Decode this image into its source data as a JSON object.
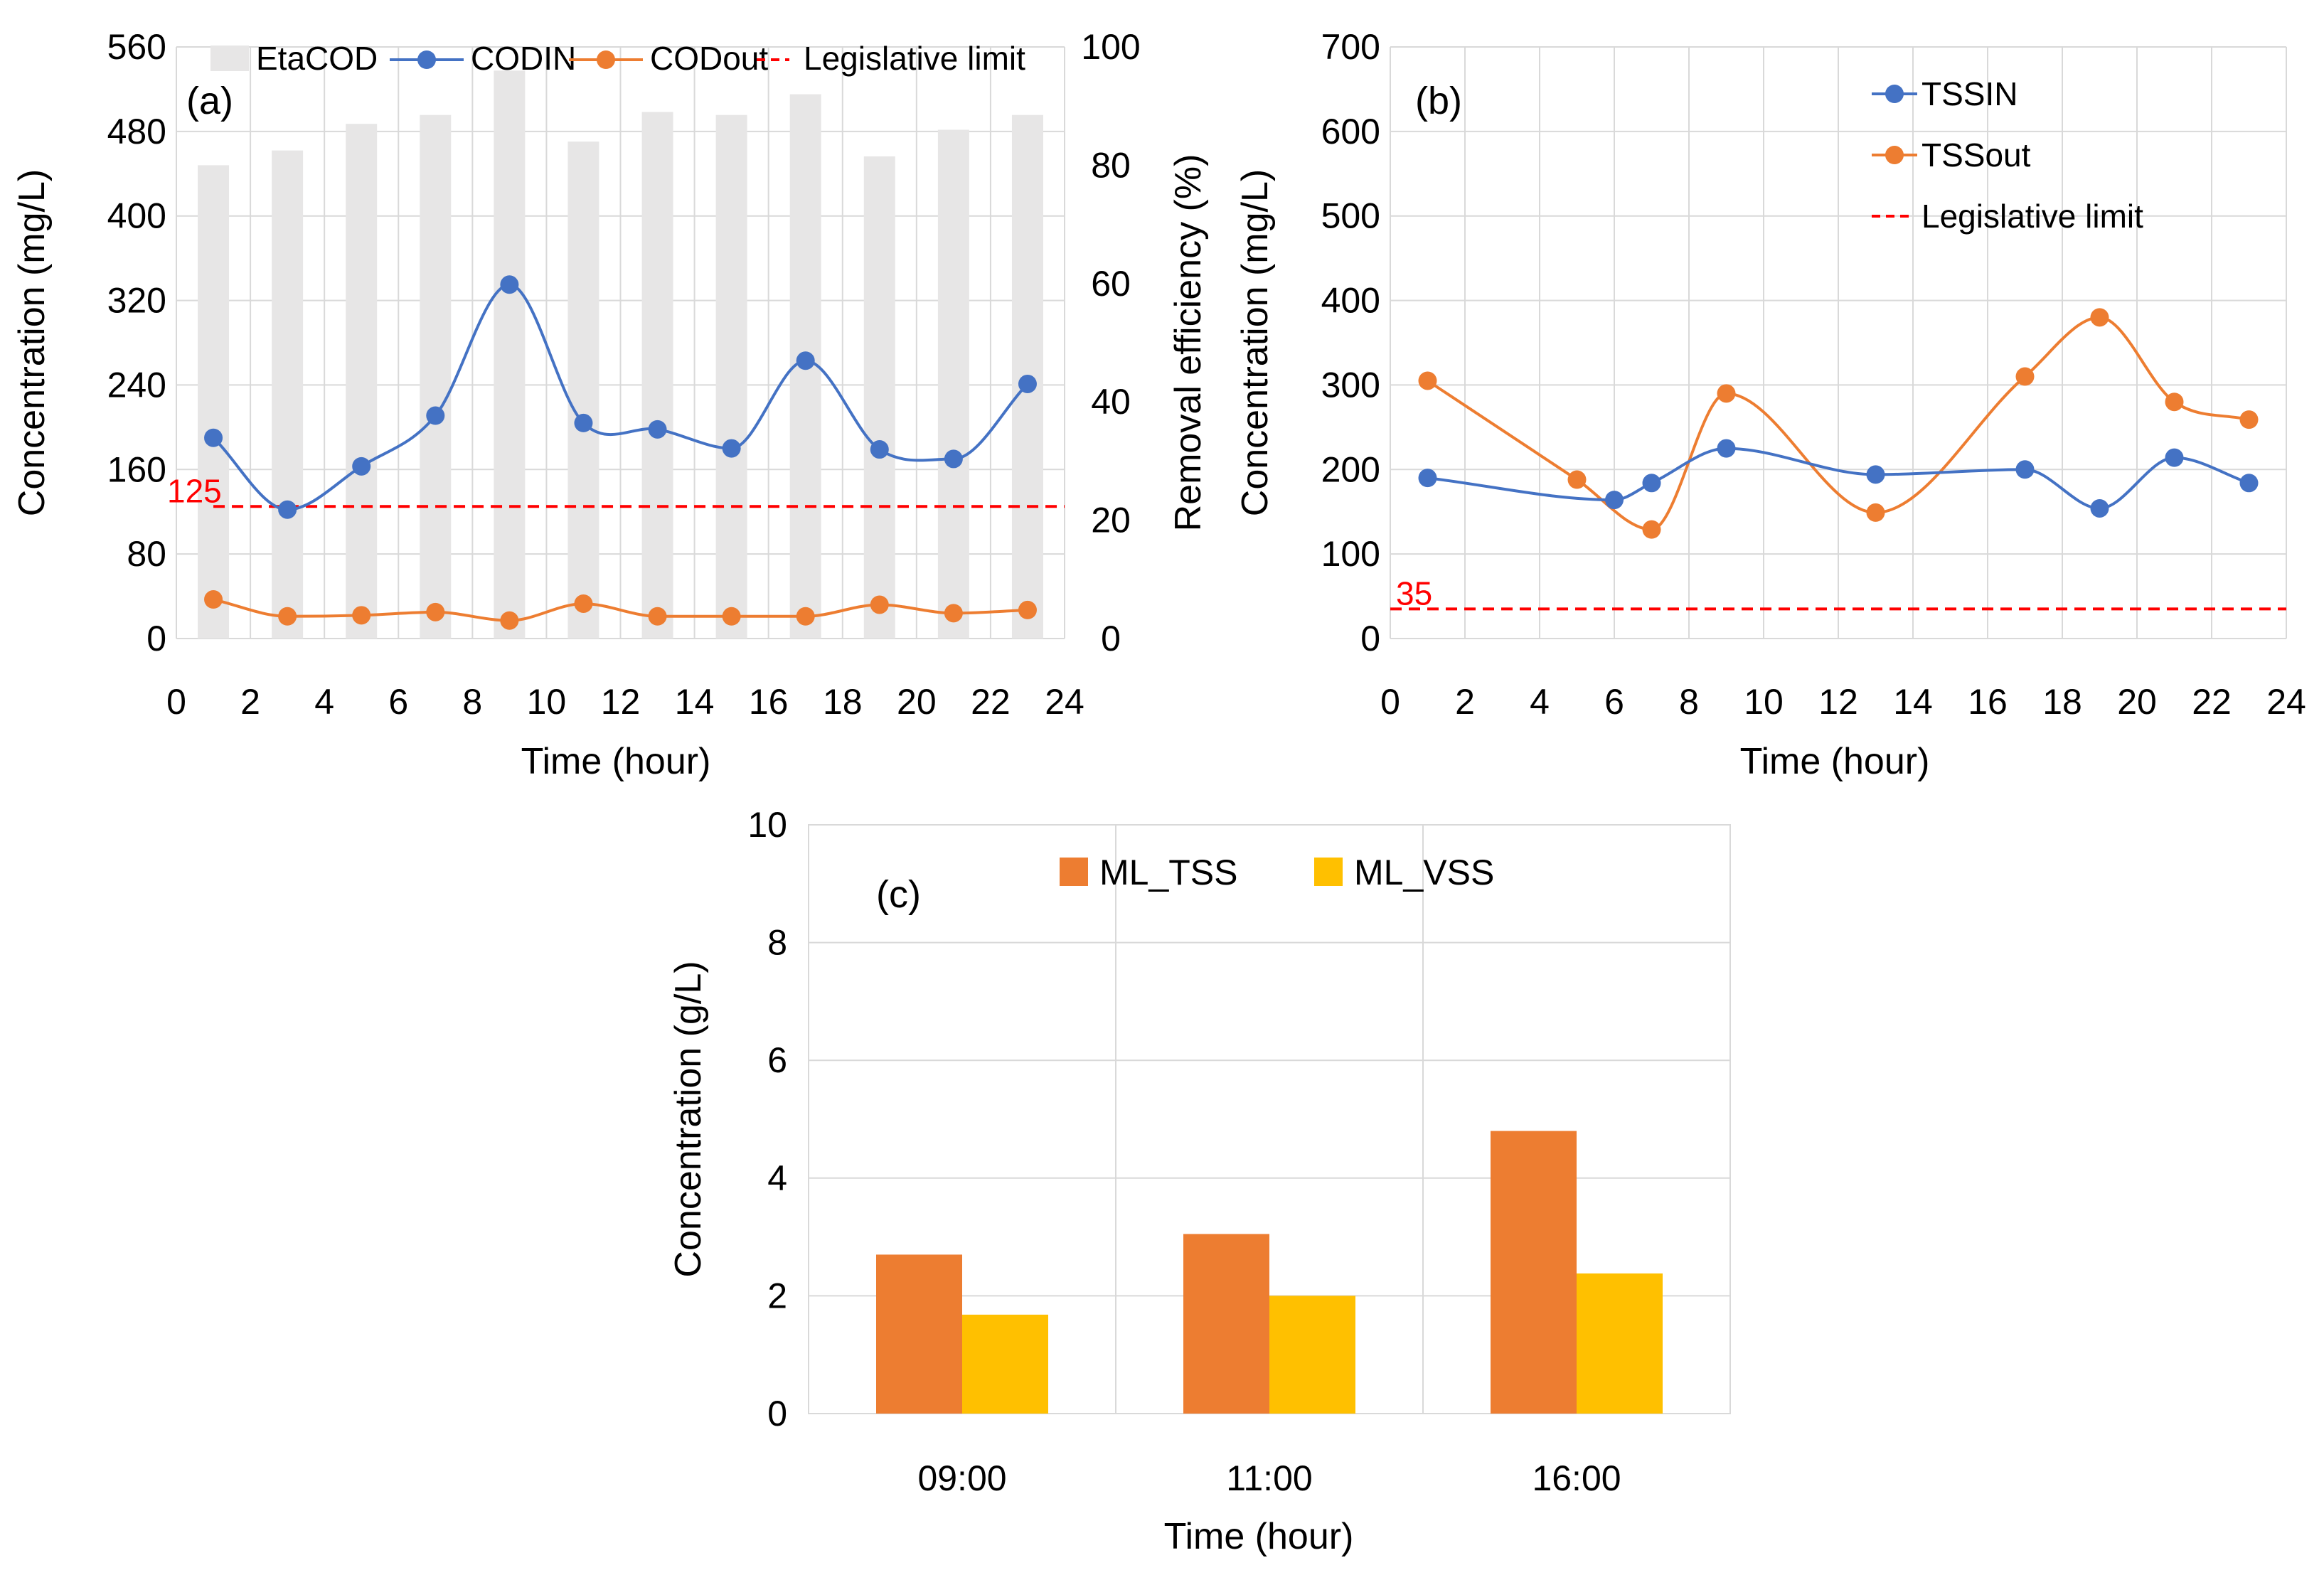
{
  "chart_data": [
    {
      "id": "a",
      "type": "bar+line",
      "panel_label": "(a)",
      "xlabel": "Time (hour)",
      "ylabel": "Concentration (mg/L)",
      "y2label": "Removal efficiency (%)",
      "xlim": [
        0,
        24
      ],
      "ylim": [
        0,
        560
      ],
      "y2lim": [
        0,
        100
      ],
      "xticks": [
        "0",
        "2",
        "4",
        "6",
        "8",
        "10",
        "12",
        "14",
        "16",
        "18",
        "20",
        "22",
        "24"
      ],
      "yticks": [
        "0",
        "80",
        "160",
        "240",
        "320",
        "400",
        "480",
        "560"
      ],
      "y2ticks": [
        "0",
        "20",
        "40",
        "60",
        "80",
        "100"
      ],
      "x": [
        1,
        3,
        5,
        7,
        9,
        11,
        13,
        15,
        17,
        19,
        21,
        23
      ],
      "series": [
        {
          "name": "EtaCOD",
          "kind": "bar",
          "axis": "y2",
          "color": "#e7e6e6",
          "values": [
            80,
            82.5,
            87,
            88.5,
            96,
            84,
            89,
            88.5,
            92,
            81.5,
            86,
            88.5
          ]
        },
        {
          "name": "CODIN",
          "kind": "line",
          "axis": "y",
          "color": "#4472c4",
          "values": [
            190,
            122,
            163,
            211,
            335,
            204,
            198,
            180,
            263,
            179,
            170,
            241
          ]
        },
        {
          "name": "CODout",
          "kind": "line",
          "axis": "y",
          "color": "#ed7d31",
          "values": [
            37,
            21,
            22,
            25,
            17,
            33,
            21,
            21,
            21,
            32,
            24,
            27
          ]
        }
      ],
      "reference_line": {
        "name": "Legislative limit",
        "value": 125,
        "label": "125",
        "color": "#ff0000"
      },
      "legend": [
        "EtaCOD",
        "CODIN",
        "CODout",
        "Legislative limit"
      ],
      "legend_position": "top"
    },
    {
      "id": "b",
      "type": "line",
      "panel_label": "(b)",
      "xlabel": "Time (hour)",
      "ylabel": "Concentration (mg/L)",
      "xlim": [
        0,
        24
      ],
      "ylim": [
        0,
        700
      ],
      "xticks": [
        "0",
        "2",
        "4",
        "6",
        "8",
        "10",
        "12",
        "14",
        "16",
        "18",
        "20",
        "22",
        "24"
      ],
      "yticks": [
        "0",
        "100",
        "200",
        "300",
        "400",
        "500",
        "600",
        "700"
      ],
      "series": [
        {
          "name": "TSSIN",
          "color": "#4472c4",
          "x": [
            1,
            6,
            7,
            9,
            13,
            17,
            19,
            21,
            23
          ],
          "values": [
            190,
            164,
            184,
            225,
            194,
            200,
            154,
            214,
            184
          ]
        },
        {
          "name": "TSSout",
          "color": "#ed7d31",
          "x": [
            1,
            5,
            7,
            9,
            13,
            17,
            19,
            21,
            23
          ],
          "values": [
            305,
            188,
            129,
            290,
            149,
            310,
            380,
            280,
            259
          ]
        }
      ],
      "reference_line": {
        "name": "Legislative limit",
        "value": 35,
        "label": "35",
        "color": "#ff0000"
      },
      "legend": [
        "TSSIN",
        "TSSout",
        "Legislative limit"
      ],
      "legend_position": "top-right"
    },
    {
      "id": "c",
      "type": "bar",
      "panel_label": "(c)",
      "xlabel": "Time (hour)",
      "ylabel": "Concentration (g/L)",
      "ylim": [
        0,
        10
      ],
      "yticks": [
        "0",
        "2",
        "4",
        "6",
        "8",
        "10"
      ],
      "categories": [
        "09:00",
        "11:00",
        "16:00"
      ],
      "series": [
        {
          "name": "ML_TSS",
          "color": "#ed7d31",
          "values": [
            2.7,
            3.05,
            4.8
          ]
        },
        {
          "name": "ML_VSS",
          "color": "#ffc000",
          "values": [
            1.68,
            2.0,
            2.38
          ]
        }
      ],
      "legend": [
        "ML_TSS",
        "ML_VSS"
      ],
      "legend_position": "top"
    }
  ]
}
